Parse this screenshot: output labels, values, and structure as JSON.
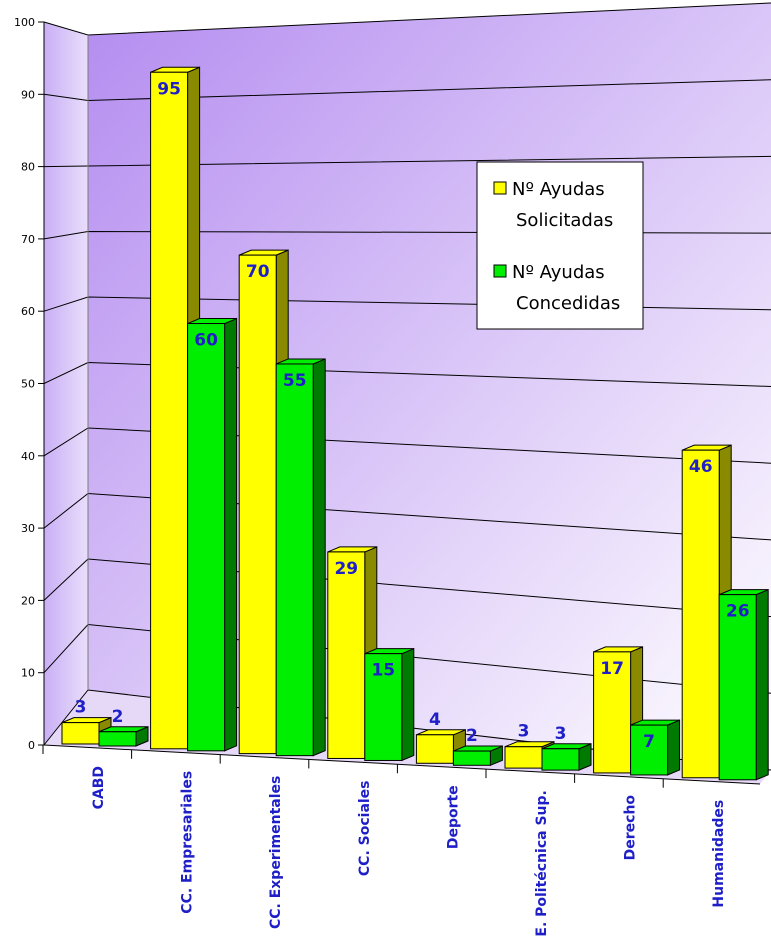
{
  "chart_data": {
    "type": "bar",
    "style": "3d-clustered",
    "categories": [
      "CABD",
      "CC. Empresariales",
      "CC. Experimentales",
      "CC. Sociales",
      "Deporte",
      "E. Politécnica Sup.",
      "Derecho",
      "Humanidades"
    ],
    "series": [
      {
        "name": "Nº Ayudas Solicitadas",
        "values": [
          3,
          95,
          70,
          29,
          4,
          3,
          17,
          46
        ],
        "color": "#ffff00",
        "side_color": "#8a8a00"
      },
      {
        "name": "Nº Ayudas Concedidas",
        "values": [
          2,
          60,
          55,
          15,
          2,
          3,
          7,
          26
        ],
        "color": "#00ee00",
        "side_color": "#007a00"
      }
    ],
    "yticks": [
      "0",
      "10",
      "20",
      "30",
      "40",
      "50",
      "60",
      "70",
      "80",
      "90",
      "100"
    ],
    "ylim": [
      0,
      100
    ],
    "grid": true,
    "legend_position": "upper-right",
    "label_color": "#1f1fc8",
    "background_gradient": [
      "#b48cf0",
      "#ffffff"
    ]
  }
}
